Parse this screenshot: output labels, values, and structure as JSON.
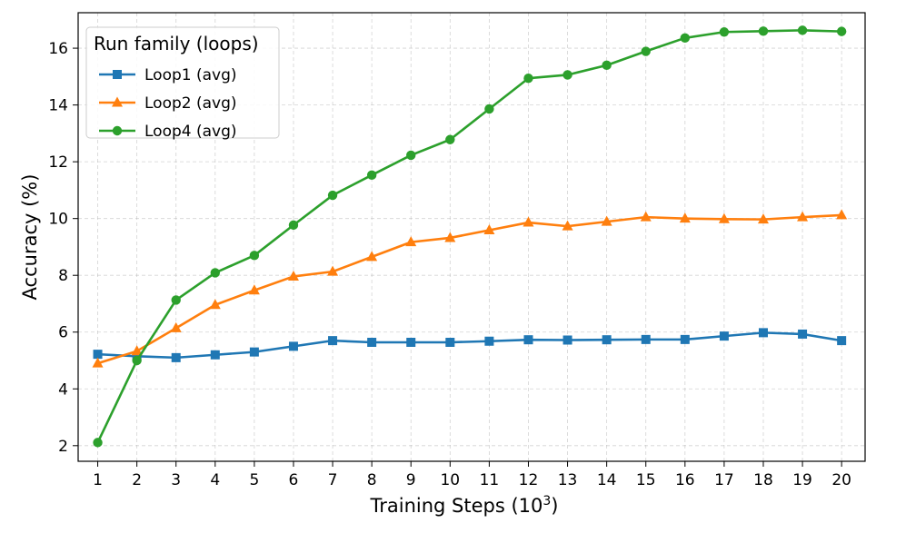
{
  "chart_data": {
    "type": "line",
    "title": "",
    "xlabel": "Training Steps (10",
    "xlabel_superscript": "3",
    "xlabel_suffix": ")",
    "ylabel": "Accuracy (%)",
    "x": [
      1,
      2,
      3,
      4,
      5,
      6,
      7,
      8,
      9,
      10,
      11,
      12,
      13,
      14,
      15,
      16,
      17,
      18,
      19,
      20
    ],
    "x_tick_labels": [
      "1",
      "2",
      "3",
      "4",
      "5",
      "6",
      "7",
      "8",
      "9",
      "10",
      "11",
      "12",
      "13",
      "14",
      "15",
      "16",
      "17",
      "18",
      "19",
      "20"
    ],
    "xlim": [
      0.5,
      20.6
    ],
    "ylim": [
      1.45,
      17.25
    ],
    "y_ticks": [
      2,
      4,
      6,
      8,
      10,
      12,
      14,
      16
    ],
    "y_tick_labels": [
      "2",
      "4",
      "6",
      "8",
      "10",
      "12",
      "14",
      "16"
    ],
    "grid": true,
    "legend": {
      "title": "Run family (loops)",
      "placement": "top-left"
    },
    "series": [
      {
        "name": "Loop1 (avg)",
        "color": "#1f77b4",
        "marker": "square",
        "values": [
          5.22,
          5.15,
          5.1,
          5.2,
          5.3,
          5.5,
          5.7,
          5.64,
          5.64,
          5.64,
          5.68,
          5.73,
          5.72,
          5.73,
          5.74,
          5.74,
          5.86,
          5.98,
          5.93,
          5.7
        ]
      },
      {
        "name": "Loop2 (avg)",
        "color": "#ff7f0e",
        "marker": "triangle",
        "values": [
          4.9,
          5.33,
          6.14,
          6.96,
          7.47,
          7.96,
          8.13,
          8.65,
          9.17,
          9.32,
          9.59,
          9.86,
          9.73,
          9.89,
          10.05,
          10.0,
          9.98,
          9.97,
          10.05,
          10.12
        ]
      },
      {
        "name": "Loop4 (avg)",
        "color": "#2ca02c",
        "marker": "circle",
        "values": [
          2.11,
          5.0,
          7.13,
          8.09,
          8.7,
          9.77,
          10.82,
          11.53,
          12.23,
          12.78,
          13.86,
          14.94,
          15.06,
          15.4,
          15.89,
          16.36,
          16.57,
          16.6,
          16.63,
          16.59
        ]
      }
    ]
  }
}
